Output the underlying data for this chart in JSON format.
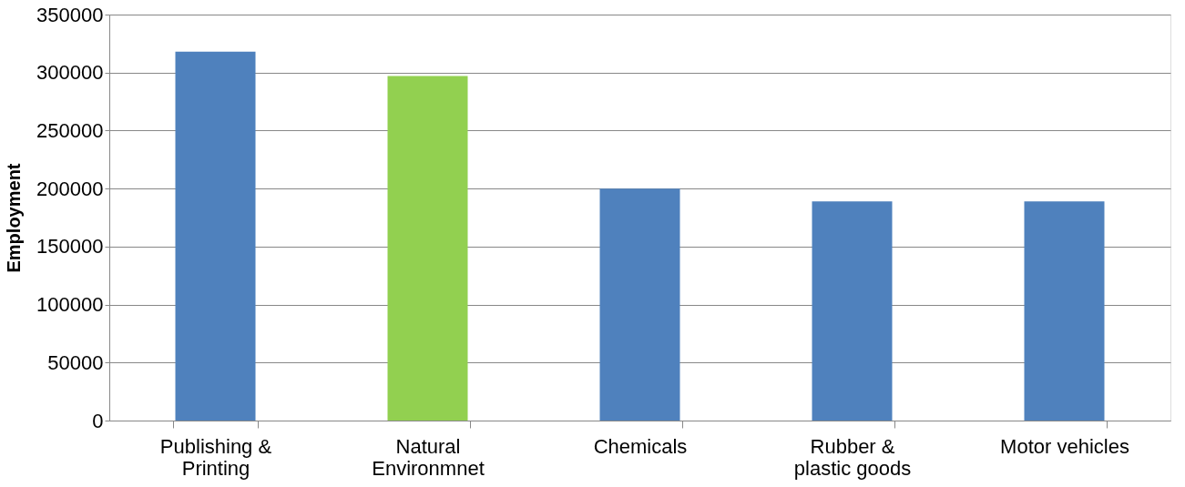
{
  "chart_data": {
    "type": "bar",
    "ylabel": "Employment",
    "categories": [
      "Publishing & Printing",
      "Natural Environmnet",
      "Chemicals",
      "Rubber & plastic goods",
      "Motor vehicles"
    ],
    "values": [
      318000,
      297000,
      200000,
      189000,
      189000
    ],
    "colors": [
      "#4f81bd",
      "#92d050",
      "#4f81bd",
      "#4f81bd",
      "#4f81bd"
    ],
    "ylim": [
      0,
      350000
    ],
    "yticks": [
      0,
      50000,
      100000,
      150000,
      200000,
      250000,
      300000,
      350000
    ],
    "grid": "y",
    "legend": false
  }
}
